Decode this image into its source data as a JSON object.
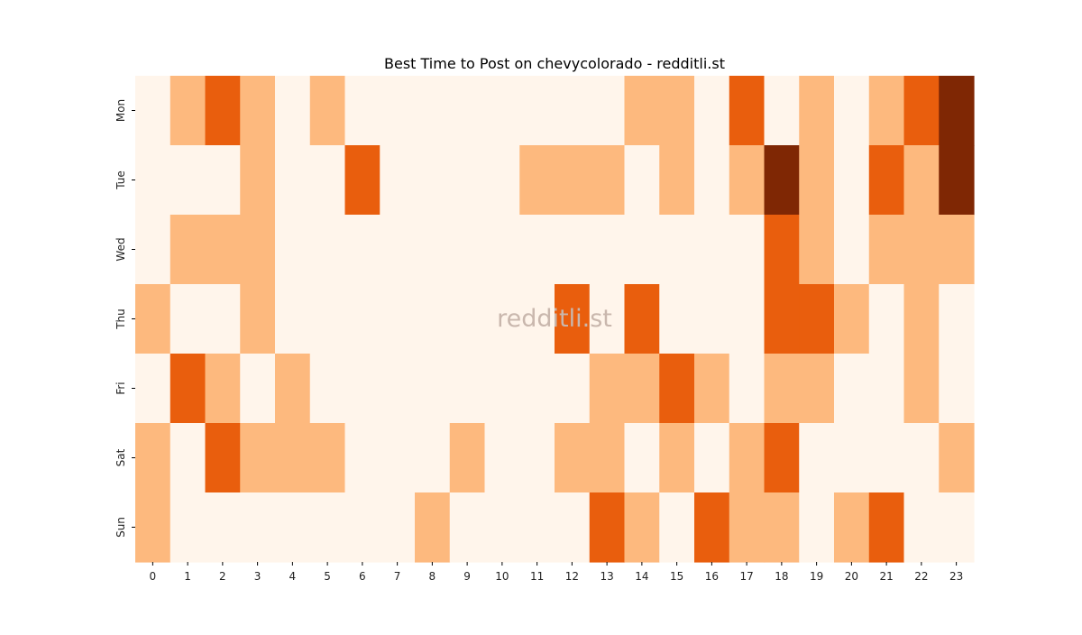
{
  "chart_data": {
    "type": "heatmap",
    "title": "Best Time to Post on chevycolorado - redditli.st",
    "watermark": "redditli.st",
    "xlabel": "",
    "ylabel": "",
    "x_categories": [
      "0",
      "1",
      "2",
      "3",
      "4",
      "5",
      "6",
      "7",
      "8",
      "9",
      "10",
      "11",
      "12",
      "13",
      "14",
      "15",
      "16",
      "17",
      "18",
      "19",
      "20",
      "21",
      "22",
      "23"
    ],
    "y_categories": [
      "Mon",
      "Tue",
      "Wed",
      "Thu",
      "Fri",
      "Sat",
      "Sun"
    ],
    "values": [
      [
        0,
        1,
        2,
        1,
        0,
        1,
        0,
        0,
        0,
        0,
        0,
        0,
        0,
        0,
        1,
        1,
        0,
        2,
        0,
        1,
        0,
        1,
        2,
        3
      ],
      [
        0,
        0,
        0,
        1,
        0,
        0,
        2,
        0,
        0,
        0,
        0,
        1,
        1,
        1,
        0,
        1,
        0,
        1,
        3,
        1,
        0,
        2,
        1,
        3
      ],
      [
        0,
        1,
        1,
        1,
        0,
        0,
        0,
        0,
        0,
        0,
        0,
        0,
        0,
        0,
        0,
        0,
        0,
        0,
        2,
        1,
        0,
        1,
        1,
        1
      ],
      [
        1,
        0,
        0,
        1,
        0,
        0,
        0,
        0,
        0,
        0,
        0,
        0,
        2,
        0,
        2,
        0,
        0,
        0,
        2,
        2,
        1,
        0,
        1,
        0
      ],
      [
        0,
        2,
        1,
        0,
        1,
        0,
        0,
        0,
        0,
        0,
        0,
        0,
        0,
        1,
        1,
        2,
        1,
        0,
        1,
        1,
        0,
        0,
        1,
        0
      ],
      [
        1,
        0,
        2,
        1,
        1,
        1,
        0,
        0,
        0,
        1,
        0,
        0,
        1,
        1,
        0,
        1,
        0,
        1,
        2,
        0,
        0,
        0,
        0,
        1
      ],
      [
        1,
        0,
        0,
        0,
        0,
        0,
        0,
        0,
        1,
        0,
        0,
        0,
        0,
        2,
        1,
        0,
        2,
        1,
        1,
        0,
        1,
        2,
        0,
        0
      ]
    ],
    "color_scale": [
      "#fff5eb",
      "#fdb97e",
      "#e95e0d",
      "#7f2704"
    ],
    "colorbar": false,
    "grid": false
  }
}
